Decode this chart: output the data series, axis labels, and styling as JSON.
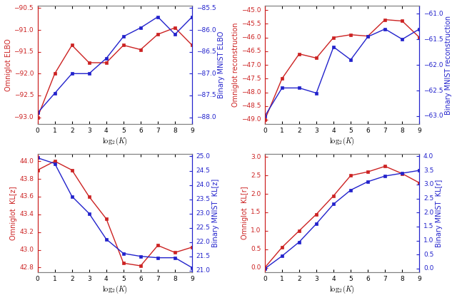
{
  "x": [
    0,
    1,
    2,
    3,
    4,
    5,
    6,
    7,
    8,
    9
  ],
  "top_left": {
    "red_y": [
      -93.0,
      -92.0,
      -91.35,
      -91.75,
      -91.75,
      -91.35,
      -91.45,
      -91.1,
      -90.95,
      -91.35
    ],
    "blue_y": [
      -87.9,
      -87.45,
      -87.0,
      -87.0,
      -86.65,
      -86.15,
      -85.95,
      -85.7,
      -86.1,
      -85.7
    ],
    "red_label": "Omniglot ELBO",
    "blue_label": "Binary MNIST ELBO",
    "red_ylim": [
      -93.15,
      -90.45
    ],
    "blue_ylim": [
      -88.15,
      -85.45
    ],
    "red_yticks": [
      -93.0,
      -92.5,
      -92.0,
      -91.5,
      -91.0,
      -90.5
    ],
    "blue_yticks": [
      -88.0,
      -87.5,
      -87.0,
      -86.5,
      -86.0,
      -85.5
    ]
  },
  "top_right": {
    "red_y": [
      -49.0,
      -47.5,
      -46.6,
      -46.75,
      -46.0,
      -45.9,
      -45.95,
      -45.35,
      -45.4,
      -46.0
    ],
    "blue_y": [
      -63.0,
      -62.45,
      -62.45,
      -62.55,
      -61.65,
      -61.9,
      -61.45,
      -61.3,
      -61.5,
      -61.3
    ],
    "red_label": "Omniglot reconstruction",
    "blue_label": "Binary MNIST reconstruction",
    "red_ylim": [
      -49.15,
      -44.85
    ],
    "blue_ylim": [
      -63.15,
      -60.85
    ],
    "red_yticks": [
      -49.0,
      -48.5,
      -48.0,
      -47.5,
      -47.0,
      -46.5,
      -46.0,
      -45.5,
      -45.0
    ],
    "blue_yticks": [
      -63.0,
      -62.5,
      -62.0,
      -61.5,
      -61.0
    ]
  },
  "bottom_left": {
    "red_y": [
      43.9,
      44.0,
      43.9,
      43.6,
      43.35,
      42.85,
      42.82,
      43.05,
      42.97,
      43.03
    ],
    "blue_y": [
      24.95,
      24.75,
      23.6,
      23.0,
      22.1,
      21.6,
      21.5,
      21.45,
      21.45,
      21.1
    ],
    "red_label": "Omniglot  KL[z]",
    "blue_label": "Binary MNIST  KL[z]",
    "red_ylim": [
      42.75,
      44.08
    ],
    "blue_ylim": [
      20.95,
      25.08
    ],
    "red_yticks": [
      42.8,
      43.0,
      43.2,
      43.4,
      43.6,
      43.8,
      44.0
    ],
    "blue_yticks": [
      21.0,
      21.5,
      22.0,
      22.5,
      23.0,
      23.5,
      24.0,
      24.5,
      25.0
    ]
  },
  "bottom_right": {
    "red_y": [
      0.0,
      0.55,
      1.0,
      1.45,
      1.95,
      2.5,
      2.6,
      2.75,
      2.55,
      2.3
    ],
    "blue_y": [
      0.0,
      0.45,
      0.95,
      1.6,
      2.3,
      2.8,
      3.1,
      3.3,
      3.4,
      3.5
    ],
    "red_label": "Omniglot  KL[r]",
    "blue_label": "Binary MNIST  KL[r]",
    "red_ylim": [
      -0.12,
      3.08
    ],
    "blue_ylim": [
      -0.12,
      4.08
    ],
    "red_yticks": [
      0.0,
      0.5,
      1.0,
      1.5,
      2.0,
      2.5,
      3.0
    ],
    "blue_yticks": [
      0.0,
      0.5,
      1.0,
      1.5,
      2.0,
      2.5,
      3.0,
      3.5,
      4.0
    ]
  },
  "red_color": "#cc2222",
  "blue_color": "#2222cc",
  "marker": "s",
  "markersize": 2.5,
  "linewidth": 1.0,
  "tick_fontsize": 6.5,
  "label_fontsize": 7.0,
  "xlabel_fontsize": 7.5
}
